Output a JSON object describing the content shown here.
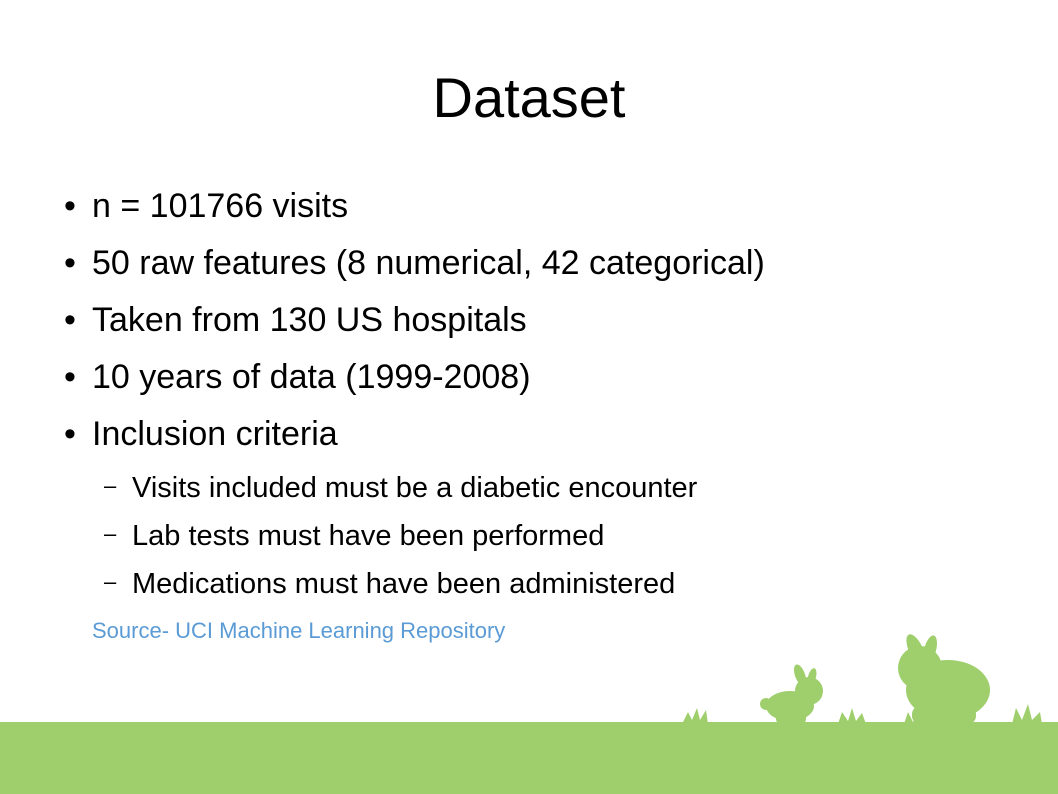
{
  "slide": {
    "title": "Dataset",
    "bullets": [
      "n = 101766 visits",
      "50 raw features (8 numerical, 42 categorical)",
      "Taken from 130 US hospitals",
      "10 years of data (1999-2008)",
      "Inclusion criteria"
    ],
    "sub_bullets": [
      "Visits included must be a diabetic encounter",
      "Lab tests must have been performed",
      "Medications must have been administered"
    ],
    "source": "Source- UCI Machine Learning Repository"
  },
  "colors": {
    "grass": "#9ecf6c",
    "source_link": "#5b9bd5"
  }
}
